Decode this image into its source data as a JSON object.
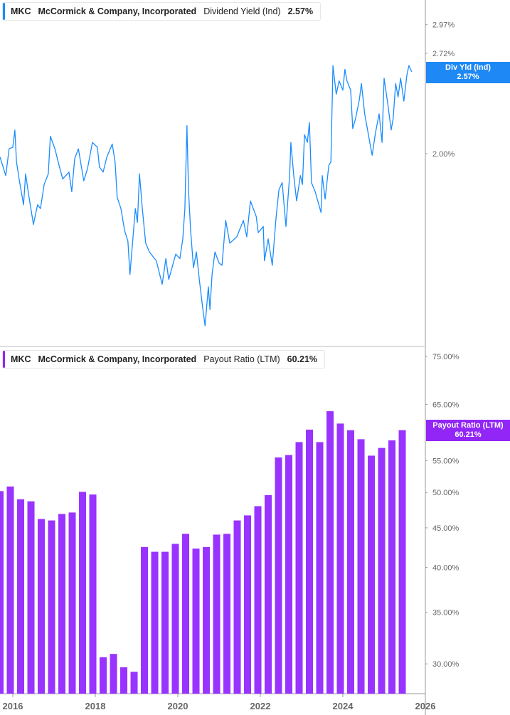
{
  "top_legend": {
    "ticker": "MKC",
    "company": "McCormick & Company, Incorporated",
    "metric": "Dividend Yield (Ind)",
    "value": "2.57%"
  },
  "bottom_legend": {
    "ticker": "MKC",
    "company": "McCormick & Company, Incorporated",
    "metric": "Payout Ratio (LTM)",
    "value": "60.21%"
  },
  "top_tag": {
    "label": "Div Yld (Ind)",
    "value": "2.57%"
  },
  "bottom_tag": {
    "label": "Payout Ratio (LTM)",
    "value": "60.21%"
  },
  "colors": {
    "line": "#1a8cff",
    "bars": "#9933ff",
    "tag_blue": "#1e88f5",
    "tag_purple": "#9126f7"
  },
  "chart_data": [
    {
      "type": "line",
      "series": [
        {
          "name": "Dividend Yield (Ind)",
          "x": [
            2015.69,
            2015.74,
            2015.83,
            2015.91,
            2016.0,
            2016.05,
            2016.09,
            2016.16,
            2016.26,
            2016.31,
            2016.38,
            2016.5,
            2016.6,
            2016.67,
            2016.76,
            2016.86,
            2016.91,
            2017.02,
            2017.12,
            2017.21,
            2017.36,
            2017.43,
            2017.5,
            2017.59,
            2017.72,
            2017.81,
            2017.93,
            2018.05,
            2018.1,
            2018.19,
            2018.28,
            2018.41,
            2018.48,
            2018.53,
            2018.62,
            2018.71,
            2018.79,
            2018.84,
            2018.97,
            2019.02,
            2019.07,
            2019.14,
            2019.22,
            2019.31,
            2019.48,
            2019.62,
            2019.71,
            2019.78,
            2019.95,
            2020.05,
            2020.12,
            2020.17,
            2020.22,
            2020.26,
            2020.31,
            2020.38,
            2020.45,
            2020.52,
            2020.6,
            2020.66,
            2020.74,
            2020.78,
            2020.83,
            2020.9,
            2021.0,
            2021.07,
            2021.16,
            2021.26,
            2021.43,
            2021.59,
            2021.67,
            2021.76,
            2021.9,
            2021.95,
            2022.07,
            2022.1,
            2022.19,
            2022.29,
            2022.38,
            2022.45,
            2022.53,
            2022.62,
            2022.71,
            2022.74,
            2022.81,
            2022.88,
            2022.97,
            2023.02,
            2023.07,
            2023.14,
            2023.19,
            2023.24,
            2023.33,
            2023.47,
            2023.5,
            2023.57,
            2023.66,
            2023.71,
            2023.76,
            2023.84,
            2023.91,
            2024.0,
            2024.05,
            2024.1,
            2024.19,
            2024.24,
            2024.31,
            2024.4,
            2024.45,
            2024.53,
            2024.66,
            2024.71,
            2024.79,
            2024.88,
            2024.95,
            2025.0,
            2025.09,
            2025.17,
            2025.22,
            2025.28,
            2025.34,
            2025.4,
            2025.48,
            2025.55,
            2025.6,
            2025.67
          ],
          "y": [
            1.98,
            1.94,
            1.87,
            2.03,
            2.04,
            2.15,
            1.95,
            1.84,
            1.71,
            1.88,
            1.77,
            1.61,
            1.71,
            1.69,
            1.82,
            1.88,
            2.11,
            2.03,
            1.93,
            1.85,
            1.89,
            1.78,
            1.97,
            2.03,
            1.84,
            1.91,
            2.07,
            2.04,
            1.92,
            1.89,
            1.98,
            2.06,
            1.95,
            1.75,
            1.69,
            1.58,
            1.53,
            1.38,
            1.69,
            1.62,
            1.88,
            1.69,
            1.52,
            1.48,
            1.44,
            1.34,
            1.45,
            1.36,
            1.47,
            1.45,
            1.54,
            1.69,
            2.18,
            1.78,
            1.58,
            1.41,
            1.48,
            1.36,
            1.25,
            1.18,
            1.33,
            1.24,
            1.38,
            1.48,
            1.43,
            1.42,
            1.63,
            1.52,
            1.55,
            1.63,
            1.55,
            1.73,
            1.65,
            1.57,
            1.6,
            1.44,
            1.54,
            1.42,
            1.64,
            1.79,
            1.83,
            1.6,
            1.87,
            2.07,
            1.87,
            1.73,
            1.87,
            1.82,
            2.12,
            2.07,
            2.2,
            1.83,
            1.78,
            1.67,
            1.87,
            1.74,
            1.93,
            1.95,
            2.62,
            2.4,
            2.5,
            2.43,
            2.59,
            2.5,
            2.43,
            2.16,
            2.23,
            2.36,
            2.48,
            2.26,
            2.06,
            1.99,
            2.13,
            2.26,
            2.07,
            2.52,
            2.33,
            2.15,
            2.23,
            2.48,
            2.38,
            2.52,
            2.35,
            2.54,
            2.62,
            2.57
          ]
        }
      ],
      "scale": "log",
      "yticks": [
        "2.00%",
        "2.72%",
        "2.97%"
      ],
      "ytick_values": [
        2.0,
        2.72,
        2.97
      ],
      "xlim": [
        2015.69,
        2026
      ]
    },
    {
      "type": "bar",
      "categories": [
        "2015-08",
        "2015-11",
        "2016-02",
        "2016-05",
        "2016-08",
        "2016-11",
        "2017-02",
        "2017-05",
        "2017-08",
        "2017-11",
        "2018-02",
        "2018-05",
        "2018-08",
        "2018-11",
        "2019-02",
        "2019-05",
        "2019-08",
        "2019-11",
        "2020-02",
        "2020-05",
        "2020-08",
        "2020-11",
        "2021-02",
        "2021-05",
        "2021-08",
        "2021-11",
        "2022-02",
        "2022-05",
        "2022-08",
        "2022-11",
        "2023-02",
        "2023-05",
        "2023-08",
        "2023-11",
        "2024-02",
        "2024-05",
        "2024-08",
        "2024-11",
        "2025-02",
        "2025-05"
      ],
      "series": [
        {
          "name": "Payout Ratio (LTM)",
          "values": [
            50.2,
            50.9,
            49.0,
            48.7,
            46.2,
            46.0,
            46.9,
            47.1,
            50.1,
            49.7,
            30.6,
            30.9,
            29.7,
            29.3,
            42.5,
            41.9,
            41.9,
            42.9,
            44.2,
            42.3,
            42.5,
            44.1,
            44.2,
            46.0,
            46.7,
            48.0,
            49.6,
            55.5,
            55.9,
            58.1,
            60.3,
            58.1,
            63.7,
            61.4,
            60.2,
            58.6,
            55.8,
            57.1,
            58.4,
            60.21
          ]
        }
      ],
      "scale": "log",
      "yticks": [
        "30.00%",
        "35.00%",
        "40.00%",
        "45.00%",
        "50.00%",
        "55.00%",
        "65.00%",
        "75.00%"
      ],
      "ytick_values": [
        30,
        35,
        40,
        45,
        50,
        55,
        65,
        75
      ],
      "xticks": [
        "2016",
        "2018",
        "2020",
        "2022",
        "2024",
        "2026"
      ],
      "xlim": [
        2015.69,
        2026
      ]
    }
  ]
}
